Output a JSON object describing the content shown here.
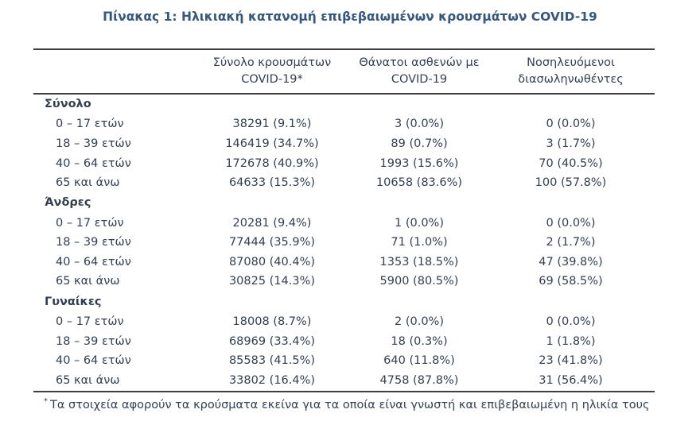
{
  "title": "Πίνακας 1: Ηλικιακή κατανομή επιβεβαιωμένων κρουσμάτων COVID-19",
  "colors": {
    "title": "#35587C",
    "text": "#333F50",
    "rule": "#3F3F3F"
  },
  "columns": [
    {
      "line1": "",
      "line2": ""
    },
    {
      "line1": "Σύνολο κρουσμάτων",
      "line2": "COVID-19*"
    },
    {
      "line1": "Θάνατοι ασθενών με",
      "line2": "COVID-19"
    },
    {
      "line1": "Νοσηλευόμενοι",
      "line2": "διασωληνωθέντες"
    }
  ],
  "sections": [
    {
      "label": "Σύνολο",
      "rows": [
        {
          "age": "0 – 17 ετών",
          "cases": "38291 (9.1%)",
          "deaths": "3 (0.0%)",
          "intubated": "0 (0.0%)"
        },
        {
          "age": "18 – 39 ετών",
          "cases": "146419 (34.7%)",
          "deaths": "89 (0.7%)",
          "intubated": "3 (1.7%)"
        },
        {
          "age": "40 – 64 ετών",
          "cases": "172678 (40.9%)",
          "deaths": "1993 (15.6%)",
          "intubated": "70 (40.5%)"
        },
        {
          "age": "65 και άνω",
          "cases": "64633 (15.3%)",
          "deaths": "10658 (83.6%)",
          "intubated": "100 (57.8%)"
        }
      ]
    },
    {
      "label": "Άνδρες",
      "rows": [
        {
          "age": "0 – 17 ετών",
          "cases": "20281 (9.4%)",
          "deaths": "1 (0.0%)",
          "intubated": "0 (0.0%)"
        },
        {
          "age": "18 – 39 ετών",
          "cases": "77444 (35.9%)",
          "deaths": "71 (1.0%)",
          "intubated": "2 (1.7%)"
        },
        {
          "age": "40 – 64 ετών",
          "cases": "87080 (40.4%)",
          "deaths": "1353 (18.5%)",
          "intubated": "47 (39.8%)"
        },
        {
          "age": "65 και άνω",
          "cases": "30825 (14.3%)",
          "deaths": "5900 (80.5%)",
          "intubated": "69 (58.5%)"
        }
      ]
    },
    {
      "label": "Γυναίκες",
      "rows": [
        {
          "age": "0 – 17 ετών",
          "cases": "18008 (8.7%)",
          "deaths": "2 (0.0%)",
          "intubated": "0 (0.0%)"
        },
        {
          "age": "18 – 39 ετών",
          "cases": "68969 (33.4%)",
          "deaths": "18 (0.3%)",
          "intubated": "1 (1.8%)"
        },
        {
          "age": "40 – 64 ετών",
          "cases": "85583 (41.5%)",
          "deaths": "640 (11.8%)",
          "intubated": "23 (41.8%)"
        },
        {
          "age": "65 και άνω",
          "cases": "33802 (16.4%)",
          "deaths": "4758 (87.8%)",
          "intubated": "31 (56.4%)"
        }
      ]
    }
  ],
  "footnote_marker": "*",
  "footnote": "Τα στοιχεία αφορούν τα κρούσματα εκείνα για τα οποία είναι γνωστή και επιβεβαιωμένη η ηλικία τους"
}
